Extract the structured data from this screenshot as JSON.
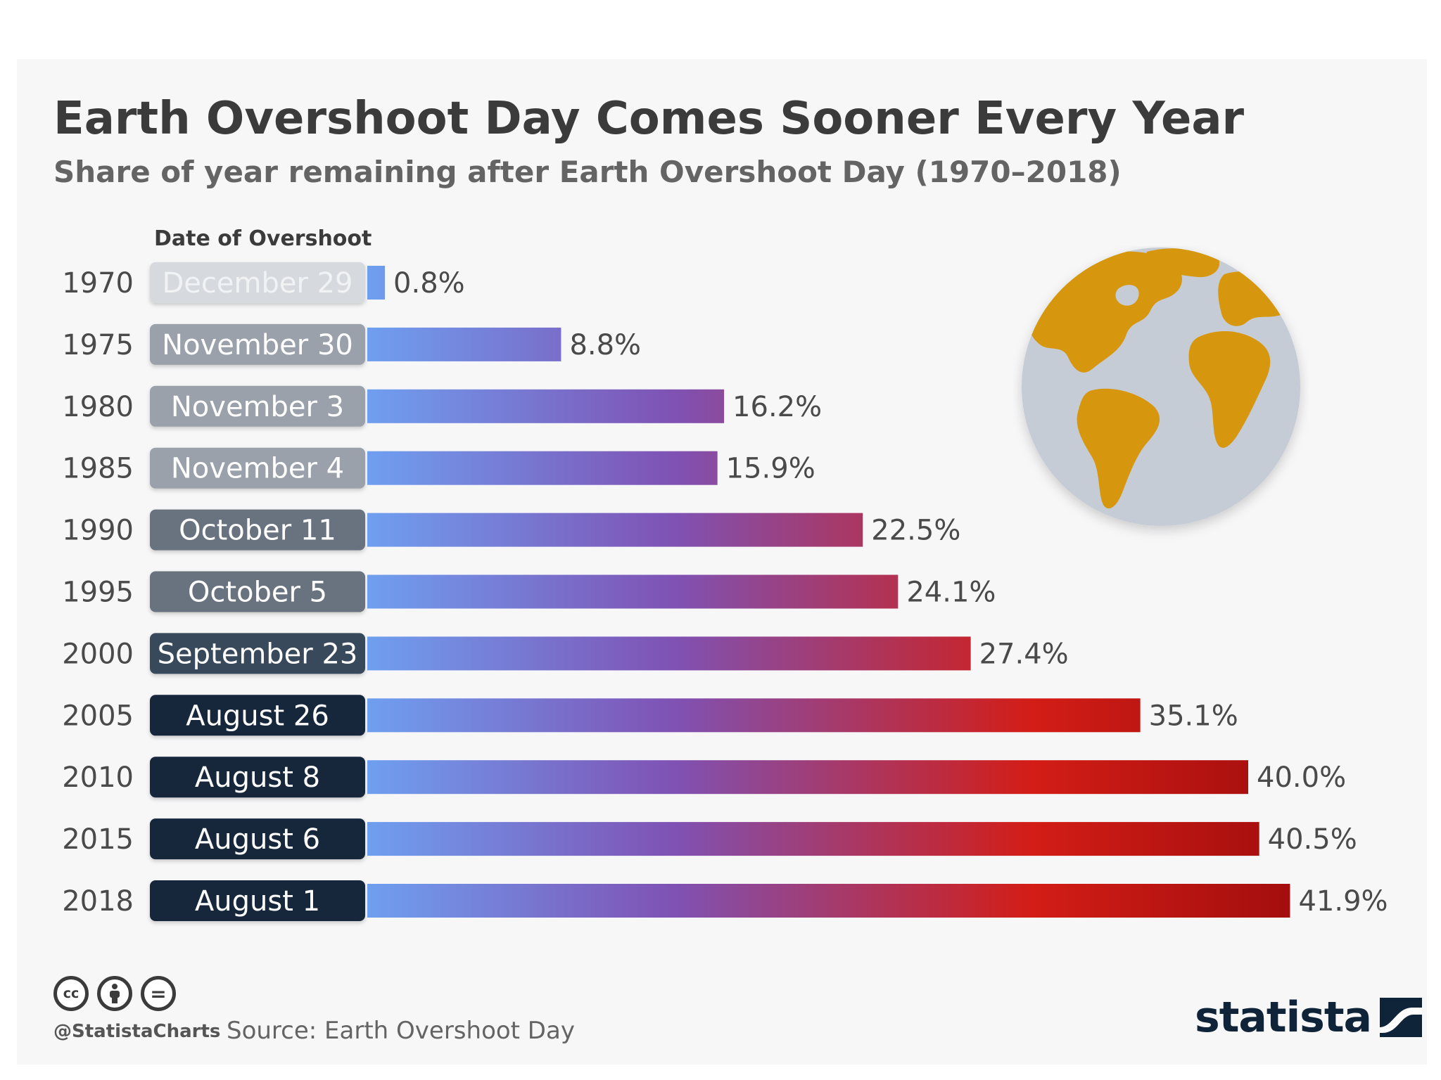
{
  "header": {
    "title": "Earth Overshoot Day Comes Sooner Every Year",
    "subtitle": "Share of year remaining after Earth Overshoot Day (1970–2018)"
  },
  "chart_data": {
    "type": "bar",
    "orientation": "horizontal",
    "title": "Earth Overshoot Day Comes Sooner Every Year",
    "subtitle": "Share of year remaining after Earth Overshoot Day (1970–2018)",
    "column_header": "Date of Overshoot",
    "categories": [
      "1970",
      "1975",
      "1980",
      "1985",
      "1990",
      "1995",
      "2000",
      "2005",
      "2010",
      "2015",
      "2018"
    ],
    "dates": [
      "December 29",
      "November 30",
      "November 3",
      "November 4",
      "October 11",
      "October 5",
      "September 23",
      "August 26",
      "August 8",
      "August 6",
      "August 1"
    ],
    "values": [
      0.8,
      8.8,
      16.2,
      15.9,
      22.5,
      24.1,
      27.4,
      35.1,
      40.0,
      40.5,
      41.9
    ],
    "value_labels": [
      "0.8%",
      "8.8%",
      "16.2%",
      "15.9%",
      "22.5%",
      "24.1%",
      "27.4%",
      "35.1%",
      "40.0%",
      "40.5%",
      "41.9%"
    ],
    "value_unit": "%",
    "xlim": [
      0,
      42
    ],
    "grid": false,
    "legend": "none",
    "date_label_colors": [
      "#d6d9de",
      "#9aa1aa",
      "#9aa1aa",
      "#9aa1aa",
      "#69737f",
      "#69737f",
      "#37485b",
      "#13263a",
      "#13263a",
      "#13263a",
      "#13263a"
    ],
    "date_text_colors": [
      "#f1f2f4",
      "#ffffff",
      "#ffffff",
      "#ffffff",
      "#ffffff",
      "#ffffff",
      "#ffffff",
      "#ffffff",
      "#ffffff",
      "#ffffff",
      "#ffffff"
    ],
    "gradient_colors": [
      "#6f9ff0",
      "#7f52b4",
      "#d31d16",
      "#a30e0e"
    ]
  },
  "footer": {
    "license_icons": [
      "cc-icon",
      "by-person-icon",
      "nd-equals-icon"
    ],
    "license_glyphs": [
      "cc",
      "",
      "="
    ],
    "handle": "@StatistaCharts",
    "source": "Source: Earth Overshoot Day",
    "brand": "statista",
    "brand_icon": "statista-logo-icon"
  },
  "illustration": {
    "icon": "globe-icon",
    "ocean_color": "#c6ccd6",
    "land_color": "#d6970e"
  }
}
